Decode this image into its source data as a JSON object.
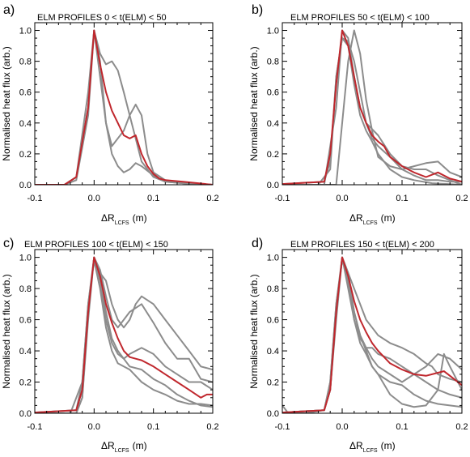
{
  "chart_data": [
    {
      "type": "line",
      "panel_label": "a)",
      "title": "ELM PROFILES 0 < t(ELM) < 50",
      "ylabel": "Normalised heat flux (arb.)",
      "xlabel_main": "ΔR",
      "xlabel_sub": "LCFS",
      "xlabel_unit": "(m)",
      "xlim": [
        -0.1,
        0.2
      ],
      "ylim": [
        0,
        1.05
      ],
      "xticks": [
        "-0.1",
        "0.0",
        "0.1",
        "0.2"
      ],
      "yticks": [
        "0.0",
        "0.2",
        "0.4",
        "0.6",
        "0.8",
        "1.0"
      ],
      "grid": false,
      "colors": {
        "individual": "#8c8c8c",
        "mean": "#c0272d"
      },
      "series": [
        {
          "role": "individual",
          "x": [
            -0.12,
            -0.05,
            -0.03,
            -0.01,
            0.0,
            0.01,
            0.02,
            0.03,
            0.04,
            0.05,
            0.06,
            0.07,
            0.08,
            0.1,
            0.12,
            0.15,
            0.2
          ],
          "y": [
            0.0,
            0.0,
            0.05,
            0.5,
            1.0,
            0.85,
            0.78,
            0.8,
            0.74,
            0.6,
            0.45,
            0.3,
            0.15,
            0.05,
            0.02,
            0.01,
            0.0
          ]
        },
        {
          "role": "individual",
          "x": [
            -0.12,
            -0.05,
            -0.03,
            -0.01,
            0.0,
            0.01,
            0.02,
            0.03,
            0.05,
            0.06,
            0.07,
            0.08,
            0.09,
            0.1,
            0.12,
            0.15,
            0.2
          ],
          "y": [
            0.0,
            0.0,
            0.03,
            0.45,
            1.0,
            0.7,
            0.4,
            0.25,
            0.35,
            0.45,
            0.52,
            0.45,
            0.2,
            0.08,
            0.03,
            0.01,
            0.0
          ]
        },
        {
          "role": "individual",
          "x": [
            -0.12,
            -0.05,
            -0.03,
            -0.01,
            0.0,
            0.01,
            0.02,
            0.03,
            0.04,
            0.05,
            0.06,
            0.07,
            0.08,
            0.1,
            0.12,
            0.15,
            0.2
          ],
          "y": [
            0.0,
            0.0,
            0.05,
            0.6,
            1.0,
            0.8,
            0.4,
            0.2,
            0.12,
            0.08,
            0.1,
            0.14,
            0.12,
            0.06,
            0.02,
            0.01,
            0.0
          ]
        },
        {
          "role": "mean",
          "x": [
            -0.12,
            -0.05,
            -0.03,
            -0.01,
            0.0,
            0.01,
            0.02,
            0.03,
            0.04,
            0.05,
            0.06,
            0.07,
            0.08,
            0.09,
            0.1,
            0.11,
            0.12,
            0.15,
            0.2
          ],
          "y": [
            0.0,
            0.0,
            0.05,
            0.5,
            1.0,
            0.78,
            0.6,
            0.48,
            0.4,
            0.32,
            0.3,
            0.32,
            0.2,
            0.12,
            0.07,
            0.04,
            0.03,
            0.02,
            0.0
          ]
        }
      ]
    },
    {
      "type": "line",
      "panel_label": "b)",
      "title": "ELM PROFILES 50 < t(ELM) < 100",
      "ylabel": "Normalised heat flux (arb.)",
      "xlabel_main": "ΔR",
      "xlabel_sub": "LCFS",
      "xlabel_unit": "(m)",
      "xlim": [
        -0.1,
        0.2
      ],
      "ylim": [
        0,
        1.05
      ],
      "xticks": [
        "-0.1",
        "0.0",
        "0.1",
        "0.2"
      ],
      "yticks": [
        "0.0",
        "0.2",
        "0.4",
        "0.6",
        "0.8",
        "1.0"
      ],
      "grid": false,
      "colors": {
        "individual": "#8c8c8c",
        "mean": "#c0272d"
      },
      "series": [
        {
          "role": "individual",
          "x": [
            -0.12,
            -0.04,
            -0.02,
            -0.01,
            0.0,
            0.01,
            0.02,
            0.03,
            0.04,
            0.05,
            0.06,
            0.08,
            0.1,
            0.12,
            0.14,
            0.16,
            0.18,
            0.2
          ],
          "y": [
            0.0,
            0.0,
            0.1,
            0.7,
            0.95,
            0.93,
            0.8,
            0.6,
            0.4,
            0.3,
            0.25,
            0.18,
            0.1,
            0.06,
            0.03,
            0.03,
            0.02,
            0.02
          ]
        },
        {
          "role": "individual",
          "x": [
            -0.12,
            -0.03,
            -0.01,
            0.0,
            0.01,
            0.02,
            0.03,
            0.04,
            0.06,
            0.08,
            0.1,
            0.12,
            0.14,
            0.16,
            0.18,
            0.2
          ],
          "y": [
            0.0,
            0.0,
            0.5,
            1.0,
            0.95,
            0.7,
            0.5,
            0.4,
            0.32,
            0.2,
            0.12,
            0.1,
            0.1,
            0.06,
            0.03,
            0.0
          ]
        },
        {
          "role": "individual",
          "x": [
            -0.12,
            -0.01,
            0.0,
            0.01,
            0.02,
            0.03,
            0.04,
            0.05,
            0.06,
            0.08,
            0.1,
            0.12,
            0.14,
            0.16,
            0.18,
            0.2
          ],
          "y": [
            0.0,
            0.0,
            0.4,
            0.8,
            1.0,
            0.85,
            0.55,
            0.35,
            0.18,
            0.12,
            0.1,
            0.12,
            0.14,
            0.15,
            0.08,
            0.05
          ]
        },
        {
          "role": "individual",
          "x": [
            -0.12,
            -0.03,
            -0.02,
            -0.01,
            0.0,
            0.01,
            0.02,
            0.03,
            0.04,
            0.05,
            0.06,
            0.08,
            0.1,
            0.12,
            0.15,
            0.2
          ],
          "y": [
            0.0,
            0.02,
            0.15,
            0.7,
            0.95,
            0.9,
            0.65,
            0.45,
            0.35,
            0.28,
            0.2,
            0.1,
            0.05,
            0.03,
            0.01,
            0.0
          ]
        },
        {
          "role": "mean",
          "x": [
            -0.12,
            -0.03,
            -0.02,
            -0.01,
            0.0,
            0.01,
            0.02,
            0.03,
            0.04,
            0.05,
            0.06,
            0.07,
            0.08,
            0.1,
            0.12,
            0.14,
            0.16,
            0.18,
            0.2
          ],
          "y": [
            0.0,
            0.02,
            0.2,
            0.65,
            1.0,
            0.9,
            0.7,
            0.5,
            0.4,
            0.32,
            0.28,
            0.25,
            0.18,
            0.12,
            0.08,
            0.05,
            0.08,
            0.04,
            0.02
          ]
        }
      ]
    },
    {
      "type": "line",
      "panel_label": "c)",
      "title": "ELM PROFILES 100 < t(ELM) < 150",
      "ylabel": "Normalised heat flux (arb.)",
      "xlabel_main": "ΔR",
      "xlabel_sub": "LCFS",
      "xlabel_unit": "(m)",
      "xlim": [
        -0.1,
        0.2
      ],
      "ylim": [
        0,
        1.05
      ],
      "xticks": [
        "-0.1",
        "0.0",
        "0.1",
        "0.2"
      ],
      "yticks": [
        "0.0",
        "0.2",
        "0.4",
        "0.6",
        "0.8",
        "1.0"
      ],
      "grid": false,
      "colors": {
        "individual": "#8c8c8c",
        "mean": "#c0272d"
      },
      "series": [
        {
          "role": "individual",
          "x": [
            -0.12,
            -0.04,
            -0.02,
            -0.01,
            0.0,
            0.01,
            0.02,
            0.03,
            0.04,
            0.05,
            0.06,
            0.07,
            0.08,
            0.1,
            0.12,
            0.14,
            0.16,
            0.18,
            0.2
          ],
          "y": [
            0.0,
            0.0,
            0.2,
            0.7,
            1.0,
            0.9,
            0.85,
            0.7,
            0.6,
            0.55,
            0.6,
            0.7,
            0.75,
            0.7,
            0.6,
            0.5,
            0.4,
            0.3,
            0.28
          ]
        },
        {
          "role": "individual",
          "x": [
            -0.12,
            -0.03,
            -0.02,
            -0.01,
            0.0,
            0.01,
            0.02,
            0.03,
            0.04,
            0.05,
            0.06,
            0.08,
            0.1,
            0.12,
            0.14,
            0.16,
            0.18,
            0.2
          ],
          "y": [
            0.0,
            0.0,
            0.1,
            0.6,
            1.0,
            0.92,
            0.75,
            0.6,
            0.55,
            0.6,
            0.65,
            0.7,
            0.58,
            0.45,
            0.35,
            0.35,
            0.22,
            0.2
          ]
        },
        {
          "role": "individual",
          "x": [
            -0.12,
            -0.03,
            -0.02,
            -0.01,
            0.0,
            0.01,
            0.02,
            0.03,
            0.04,
            0.05,
            0.06,
            0.08,
            0.1,
            0.12,
            0.14,
            0.16,
            0.18,
            0.2
          ],
          "y": [
            0.0,
            0.0,
            0.1,
            0.65,
            1.0,
            0.85,
            0.6,
            0.45,
            0.38,
            0.35,
            0.38,
            0.42,
            0.38,
            0.3,
            0.25,
            0.2,
            0.2,
            0.15
          ]
        },
        {
          "role": "individual",
          "x": [
            -0.12,
            -0.03,
            -0.02,
            -0.01,
            0.0,
            0.01,
            0.02,
            0.03,
            0.04,
            0.05,
            0.06,
            0.08,
            0.1,
            0.12,
            0.14,
            0.16,
            0.18,
            0.2
          ],
          "y": [
            0.0,
            0.02,
            0.15,
            0.65,
            1.0,
            0.9,
            0.65,
            0.48,
            0.4,
            0.35,
            0.3,
            0.28,
            0.22,
            0.18,
            0.12,
            0.08,
            0.05,
            0.04
          ]
        },
        {
          "role": "individual",
          "x": [
            -0.12,
            -0.03,
            -0.02,
            -0.01,
            0.0,
            0.01,
            0.02,
            0.03,
            0.04,
            0.05,
            0.06,
            0.08,
            0.1,
            0.12,
            0.14,
            0.16,
            0.18,
            0.2
          ],
          "y": [
            0.0,
            0.02,
            0.2,
            0.7,
            0.98,
            0.8,
            0.55,
            0.4,
            0.32,
            0.3,
            0.28,
            0.2,
            0.15,
            0.12,
            0.08,
            0.06,
            0.06,
            0.05
          ]
        },
        {
          "role": "mean",
          "x": [
            -0.12,
            -0.03,
            -0.02,
            -0.01,
            0.0,
            0.01,
            0.02,
            0.03,
            0.04,
            0.05,
            0.06,
            0.07,
            0.08,
            0.1,
            0.12,
            0.14,
            0.16,
            0.18,
            0.19,
            0.2
          ],
          "y": [
            0.0,
            0.02,
            0.15,
            0.65,
            1.0,
            0.88,
            0.7,
            0.58,
            0.48,
            0.4,
            0.36,
            0.35,
            0.34,
            0.3,
            0.25,
            0.2,
            0.15,
            0.1,
            0.12,
            0.12
          ]
        }
      ]
    },
    {
      "type": "line",
      "panel_label": "d)",
      "title": "ELM PROFILES 150 < t(ELM) < 200",
      "ylabel": "Normalised heat flux (arb.)",
      "xlabel_main": "ΔR",
      "xlabel_sub": "LCFS",
      "xlabel_unit": "(m)",
      "xlim": [
        -0.1,
        0.2
      ],
      "ylim": [
        0,
        1.05
      ],
      "xticks": [
        "-0.1",
        "0.0",
        "0.1",
        "0.2"
      ],
      "yticks": [
        "0.0",
        "0.2",
        "0.4",
        "0.6",
        "0.8",
        "1.0"
      ],
      "grid": false,
      "colors": {
        "individual": "#8c8c8c",
        "mean": "#c0272d"
      },
      "series": [
        {
          "role": "individual",
          "x": [
            -0.1,
            -0.09,
            -0.06,
            -0.03,
            -0.02,
            -0.01,
            0.0,
            0.01,
            0.02,
            0.03,
            0.04,
            0.05,
            0.06,
            0.08,
            0.1,
            0.12,
            0.14,
            0.15,
            0.16,
            0.18,
            0.2
          ],
          "y": [
            0.05,
            0.0,
            0.0,
            0.02,
            0.2,
            0.7,
            1.0,
            0.9,
            0.8,
            0.7,
            0.6,
            0.55,
            0.5,
            0.45,
            0.42,
            0.38,
            0.32,
            0.3,
            0.25,
            0.22,
            0.2
          ]
        },
        {
          "role": "individual",
          "x": [
            -0.12,
            -0.03,
            -0.02,
            -0.01,
            0.0,
            0.01,
            0.02,
            0.03,
            0.04,
            0.05,
            0.06,
            0.08,
            0.1,
            0.12,
            0.14,
            0.16,
            0.18,
            0.2
          ],
          "y": [
            0.0,
            0.02,
            0.15,
            0.65,
            1.0,
            0.8,
            0.6,
            0.48,
            0.42,
            0.42,
            0.38,
            0.35,
            0.3,
            0.25,
            0.2,
            0.15,
            0.12,
            0.1
          ]
        },
        {
          "role": "individual",
          "x": [
            -0.12,
            -0.03,
            -0.02,
            -0.01,
            0.0,
            0.01,
            0.02,
            0.03,
            0.04,
            0.05,
            0.06,
            0.08,
            0.1,
            0.12,
            0.14,
            0.16,
            0.17,
            0.18,
            0.2
          ],
          "y": [
            0.0,
            0.02,
            0.15,
            0.6,
            1.0,
            0.9,
            0.65,
            0.5,
            0.4,
            0.3,
            0.25,
            0.12,
            0.06,
            0.04,
            0.05,
            0.15,
            0.38,
            0.3,
            0.15
          ]
        },
        {
          "role": "individual",
          "x": [
            -0.12,
            -0.03,
            -0.02,
            -0.01,
            0.0,
            0.01,
            0.02,
            0.03,
            0.04,
            0.05,
            0.06,
            0.08,
            0.1,
            0.12,
            0.14,
            0.16,
            0.18,
            0.2
          ],
          "y": [
            0.0,
            0.02,
            0.15,
            0.65,
            1.0,
            0.85,
            0.6,
            0.45,
            0.38,
            0.3,
            0.25,
            0.2,
            0.18,
            0.12,
            0.08,
            0.06,
            0.05,
            0.04
          ]
        },
        {
          "role": "individual",
          "x": [
            -0.12,
            -0.03,
            -0.02,
            -0.01,
            0.0,
            0.01,
            0.02,
            0.03,
            0.04,
            0.05,
            0.06,
            0.08,
            0.1,
            0.12,
            0.14,
            0.16,
            0.18,
            0.2
          ],
          "y": [
            0.0,
            0.02,
            0.2,
            0.7,
            0.98,
            0.88,
            0.65,
            0.5,
            0.42,
            0.35,
            0.3,
            0.25,
            0.2,
            0.25,
            0.3,
            0.38,
            0.35,
            0.28
          ]
        },
        {
          "role": "mean",
          "x": [
            -0.12,
            -0.03,
            -0.02,
            -0.01,
            0.0,
            0.01,
            0.02,
            0.03,
            0.04,
            0.05,
            0.06,
            0.07,
            0.08,
            0.1,
            0.12,
            0.14,
            0.16,
            0.17,
            0.18,
            0.2
          ],
          "y": [
            0.0,
            0.02,
            0.15,
            0.65,
            1.0,
            0.88,
            0.72,
            0.6,
            0.52,
            0.45,
            0.4,
            0.36,
            0.32,
            0.28,
            0.25,
            0.24,
            0.26,
            0.27,
            0.24,
            0.18
          ]
        }
      ]
    }
  ]
}
